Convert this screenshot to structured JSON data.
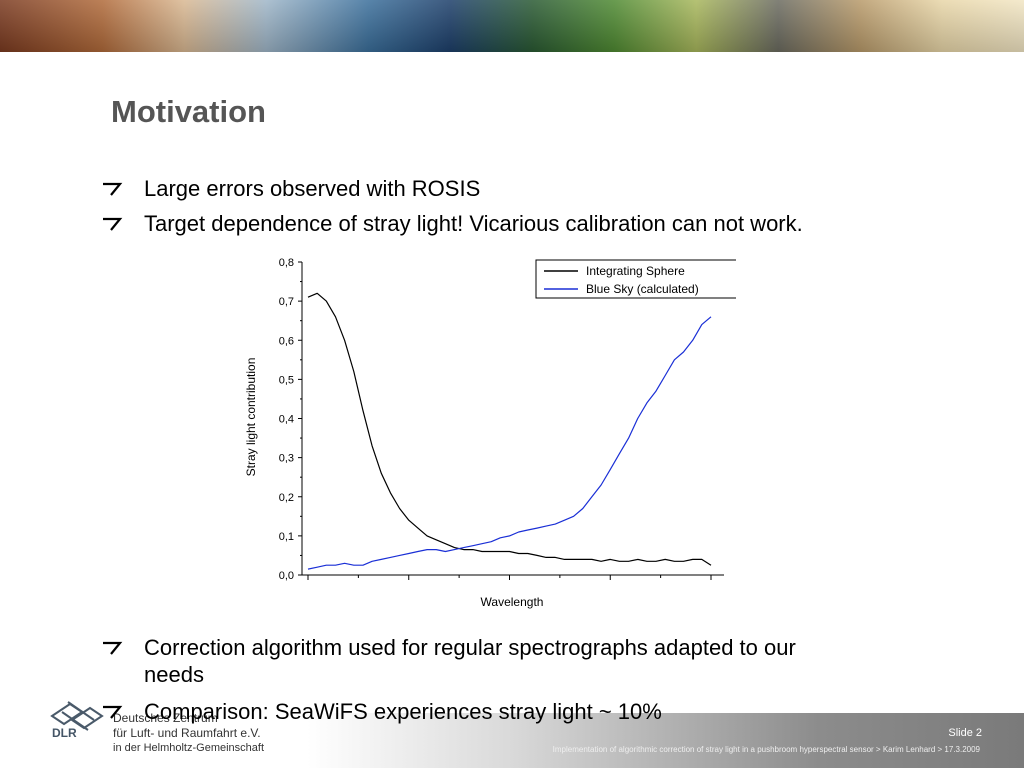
{
  "slide": {
    "title": "Motivation",
    "bullets_top": [
      "Large errors observed with ROSIS",
      "Target dependence of stray light! Vicarious calibration can not work."
    ],
    "bullets_bottom": [
      [
        "Correction algorithm used for regular spectrographs adapted to our",
        "needs"
      ],
      [
        "Comparison: SeaWiFS experiences stray light ~ 10%"
      ]
    ]
  },
  "footer": {
    "slide_number": "Slide 2",
    "caption": "Implementation of algorithmic correction of stray light in a pushbroom hyperspectral sensor > Karim Lenhard > 17.3.2009",
    "logo_lines": [
      "Deutsches Zentrum",
      "für Luft- und Raumfahrt e.V.",
      "in der Helmholtz-Gemeinschaft"
    ],
    "logo_abbrev": "DLR"
  },
  "colors": {
    "title": "#555555",
    "integrating_sphere": "#000000",
    "blue_sky": "#1a2fd6",
    "footer_gray": "#8c8c8c"
  },
  "icons": {
    "bullet": "arrow-bullet-icon",
    "logo": "dlr-logo-icon"
  },
  "chart_data": {
    "type": "line",
    "xlabel": "Wavelength",
    "ylabel": "Stray light contribution",
    "ylim": [
      0,
      0.8
    ],
    "y_ticks": [
      "0,0",
      "0,1",
      "0,2",
      "0,3",
      "0,4",
      "0,5",
      "0,6",
      "0,7",
      "0,8"
    ],
    "x_tick_count": 5,
    "x_tick_labels_shown": false,
    "legend_position": "top-right",
    "x": [
      0,
      2,
      4,
      6,
      8,
      10,
      12,
      14,
      16,
      18,
      20,
      22,
      24,
      26,
      28,
      30,
      32,
      34,
      36,
      38,
      40,
      42,
      44,
      46,
      48,
      50,
      52,
      54,
      56,
      58,
      60,
      62,
      64,
      66,
      68,
      70,
      72,
      74,
      76,
      78,
      80,
      82,
      84,
      86,
      88
    ],
    "series": [
      {
        "name": "Integrating Sphere",
        "values": [
          0.71,
          0.72,
          0.7,
          0.66,
          0.6,
          0.52,
          0.42,
          0.33,
          0.26,
          0.21,
          0.17,
          0.14,
          0.12,
          0.1,
          0.09,
          0.08,
          0.07,
          0.065,
          0.065,
          0.06,
          0.06,
          0.06,
          0.06,
          0.055,
          0.055,
          0.05,
          0.045,
          0.045,
          0.04,
          0.04,
          0.04,
          0.04,
          0.035,
          0.04,
          0.035,
          0.035,
          0.04,
          0.035,
          0.035,
          0.04,
          0.035,
          0.035,
          0.04,
          0.04,
          0.025
        ]
      },
      {
        "name": "Blue Sky (calculated)",
        "values": [
          0.015,
          0.02,
          0.025,
          0.025,
          0.03,
          0.025,
          0.025,
          0.035,
          0.04,
          0.045,
          0.05,
          0.055,
          0.06,
          0.065,
          0.065,
          0.06,
          0.065,
          0.07,
          0.075,
          0.08,
          0.085,
          0.095,
          0.1,
          0.11,
          0.115,
          0.12,
          0.125,
          0.13,
          0.14,
          0.15,
          0.17,
          0.2,
          0.23,
          0.27,
          0.31,
          0.35,
          0.4,
          0.44,
          0.47,
          0.51,
          0.55,
          0.57,
          0.6,
          0.64,
          0.66
        ]
      }
    ]
  }
}
